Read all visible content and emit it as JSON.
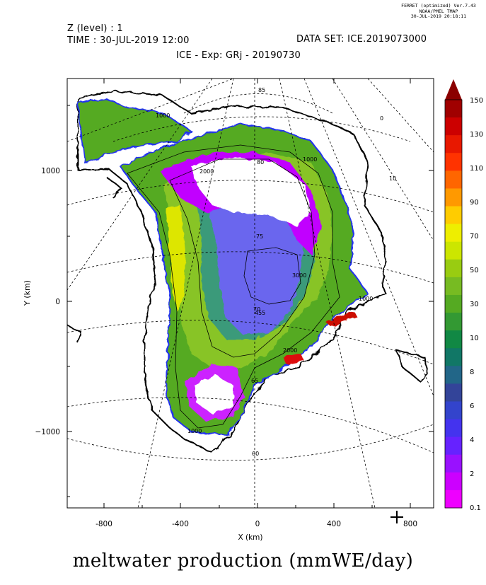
{
  "header": {
    "ferret_line1": "FERRET (optimized) Ver.7.43",
    "ferret_line2": "NOAA/PMEL TMAP",
    "ferret_line3": "30-JUL-2019 20:18:11",
    "level": "Z (level) : 1",
    "time": "TIME : 30-JUL-2019 12:00",
    "dataset": "DATA SET: ICE.2019073000",
    "title": "ICE - Exp: GRj - 20190730"
  },
  "axes": {
    "xlabel": "X (km)",
    "ylabel": "Y (km)",
    "xticks": [
      "-800",
      "-400",
      "0",
      "400",
      "800"
    ],
    "yticks": [
      "1000",
      "0",
      "−1000"
    ]
  },
  "map_labels": {
    "lat_85": "85",
    "lat_80": "80",
    "lat_75": "75",
    "lat_70": "70",
    "lat_65": "65",
    "lat_60": "60",
    "lon_0": "0",
    "lon_10": "10",
    "elev_1000_a": "1000",
    "elev_1000_b": "1000",
    "elev_1000_c": "1000",
    "elev_1000_d": "1000",
    "elev_2000_a": "2000",
    "elev_2000_b": "2000",
    "elev_3000": "3000",
    "elev_455": "455"
  },
  "colorbar": {
    "labels": [
      "150",
      "130",
      "110",
      "90",
      "70",
      "50",
      "30",
      "10",
      "8",
      "6",
      "4",
      "2",
      "0.1"
    ],
    "colors": [
      "#a00000",
      "#cc0000",
      "#e81800",
      "#ff3300",
      "#ff6600",
      "#ff9900",
      "#ffcc00",
      "#eeee00",
      "#cce600",
      "#99cc11",
      "#77bb22",
      "#55aa22",
      "#339933",
      "#118844",
      "#117766",
      "#226688",
      "#334499",
      "#3344cc",
      "#4433ee",
      "#6622ff",
      "#9911ff",
      "#cc00ff",
      "#ee00ff"
    ],
    "arrow_color": "#8b0000"
  },
  "caption": "meltwater production (mmWE/day)",
  "chart_data": {
    "type": "heatmap",
    "title": "ICE - Exp: GRj - 20190730",
    "xlabel": "X (km)",
    "ylabel": "Y (km)",
    "xlim": [
      -980,
      880
    ],
    "ylim": [
      -1580,
      1710
    ],
    "colorbar_levels": [
      0.1,
      2,
      4,
      6,
      8,
      10,
      30,
      50,
      70,
      90,
      110,
      130,
      150
    ],
    "units": "mmWE/day"
  }
}
